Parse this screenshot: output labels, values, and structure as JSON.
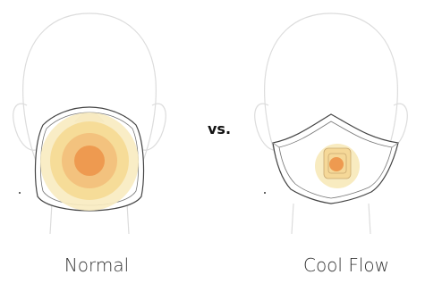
{
  "labels": {
    "left": "Normal",
    "middle": "vs.",
    "right": "Cool Flow"
  }
}
